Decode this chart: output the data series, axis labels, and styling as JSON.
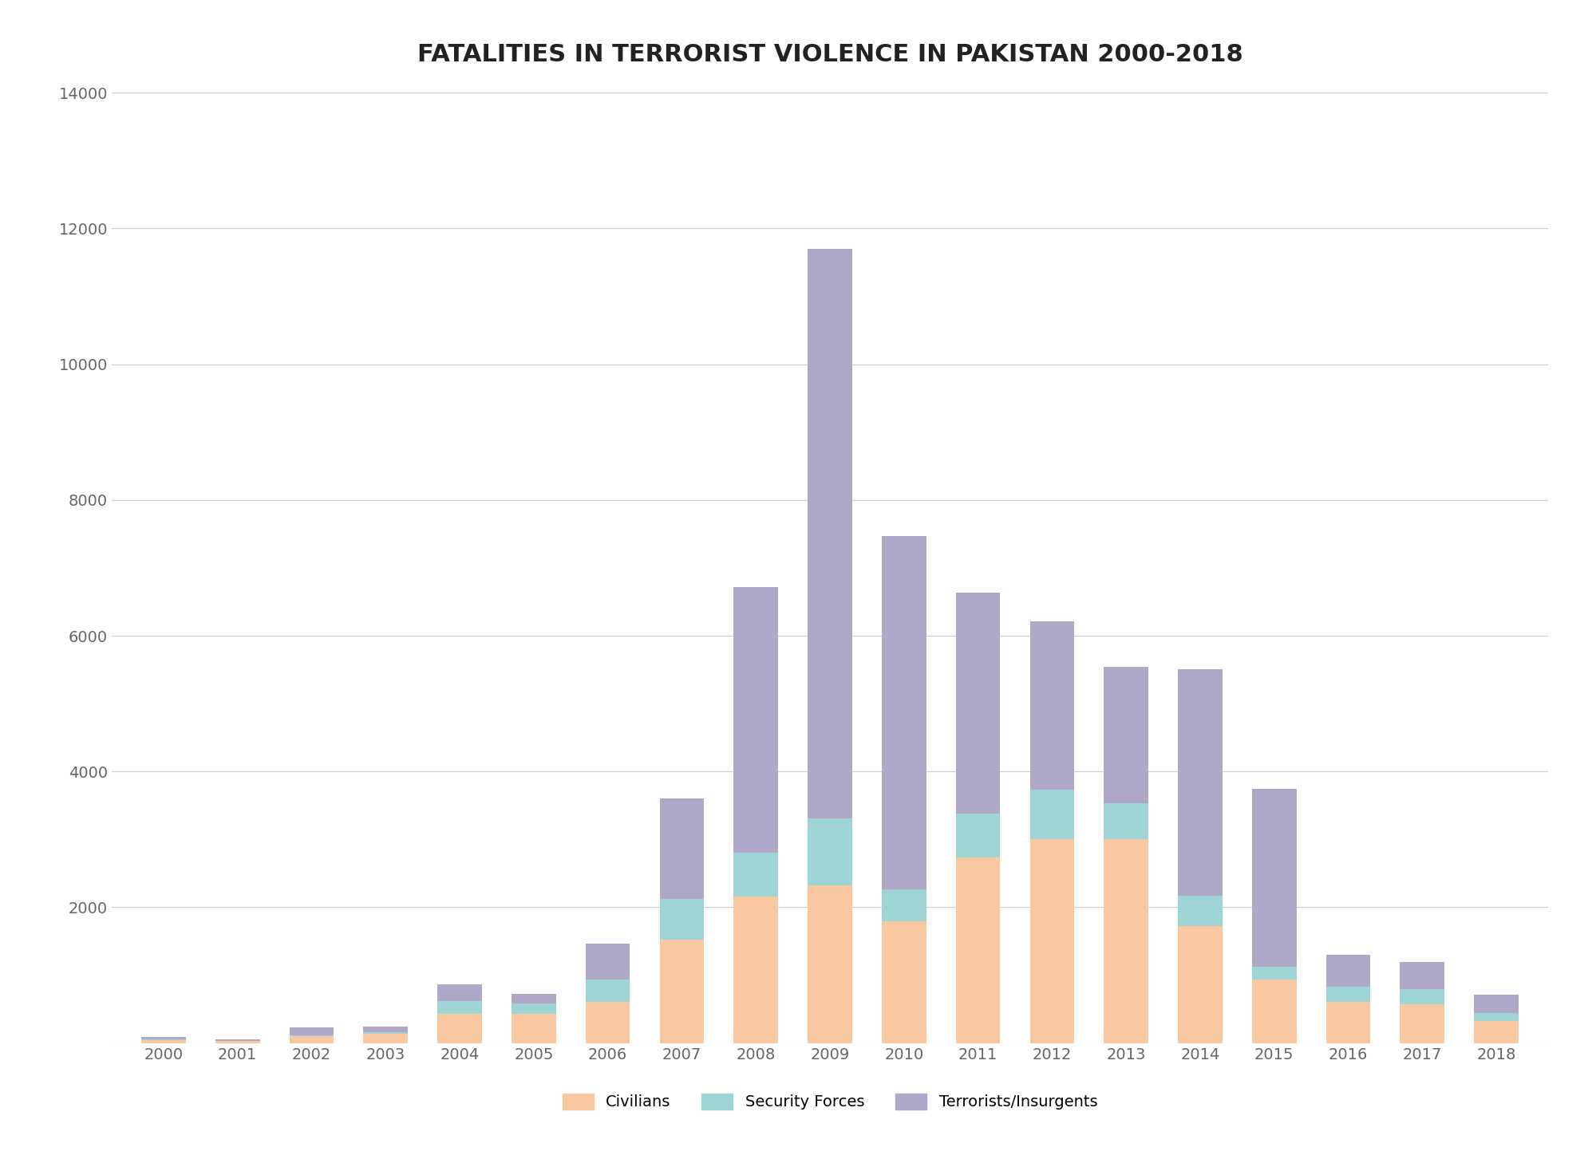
{
  "title": "FATALITIES IN TERRORIST VIOLENCE IN PAKISTAN 2000-2018",
  "years": [
    2000,
    2001,
    2002,
    2003,
    2004,
    2005,
    2006,
    2007,
    2008,
    2009,
    2010,
    2011,
    2012,
    2013,
    2014,
    2015,
    2016,
    2017,
    2018
  ],
  "civilians": [
    43,
    27,
    103,
    140,
    435,
    430,
    608,
    1523,
    2155,
    2324,
    1796,
    2738,
    3007,
    3001,
    1723,
    939,
    611,
    572,
    325
  ],
  "security_forces": [
    10,
    7,
    16,
    24,
    184,
    159,
    325,
    597,
    654,
    991,
    469,
    640,
    730,
    534,
    444,
    185,
    220,
    218,
    115
  ],
  "terrorists": [
    42,
    22,
    115,
    80,
    244,
    137,
    538,
    1478,
    3906,
    8389,
    5206,
    3257,
    2472,
    2002,
    3341,
    2616,
    472,
    407,
    275
  ],
  "colors": {
    "civilians": "#f9c8a0",
    "security_forces": "#9ed4d4",
    "terrorists": "#b0a8c8"
  },
  "ylim": [
    0,
    14000
  ],
  "yticks": [
    0,
    2000,
    4000,
    6000,
    8000,
    10000,
    12000,
    14000
  ],
  "background_color": "#ffffff",
  "grid_color": "#cccccc",
  "title_fontsize": 22,
  "tick_fontsize": 14,
  "legend_fontsize": 14
}
